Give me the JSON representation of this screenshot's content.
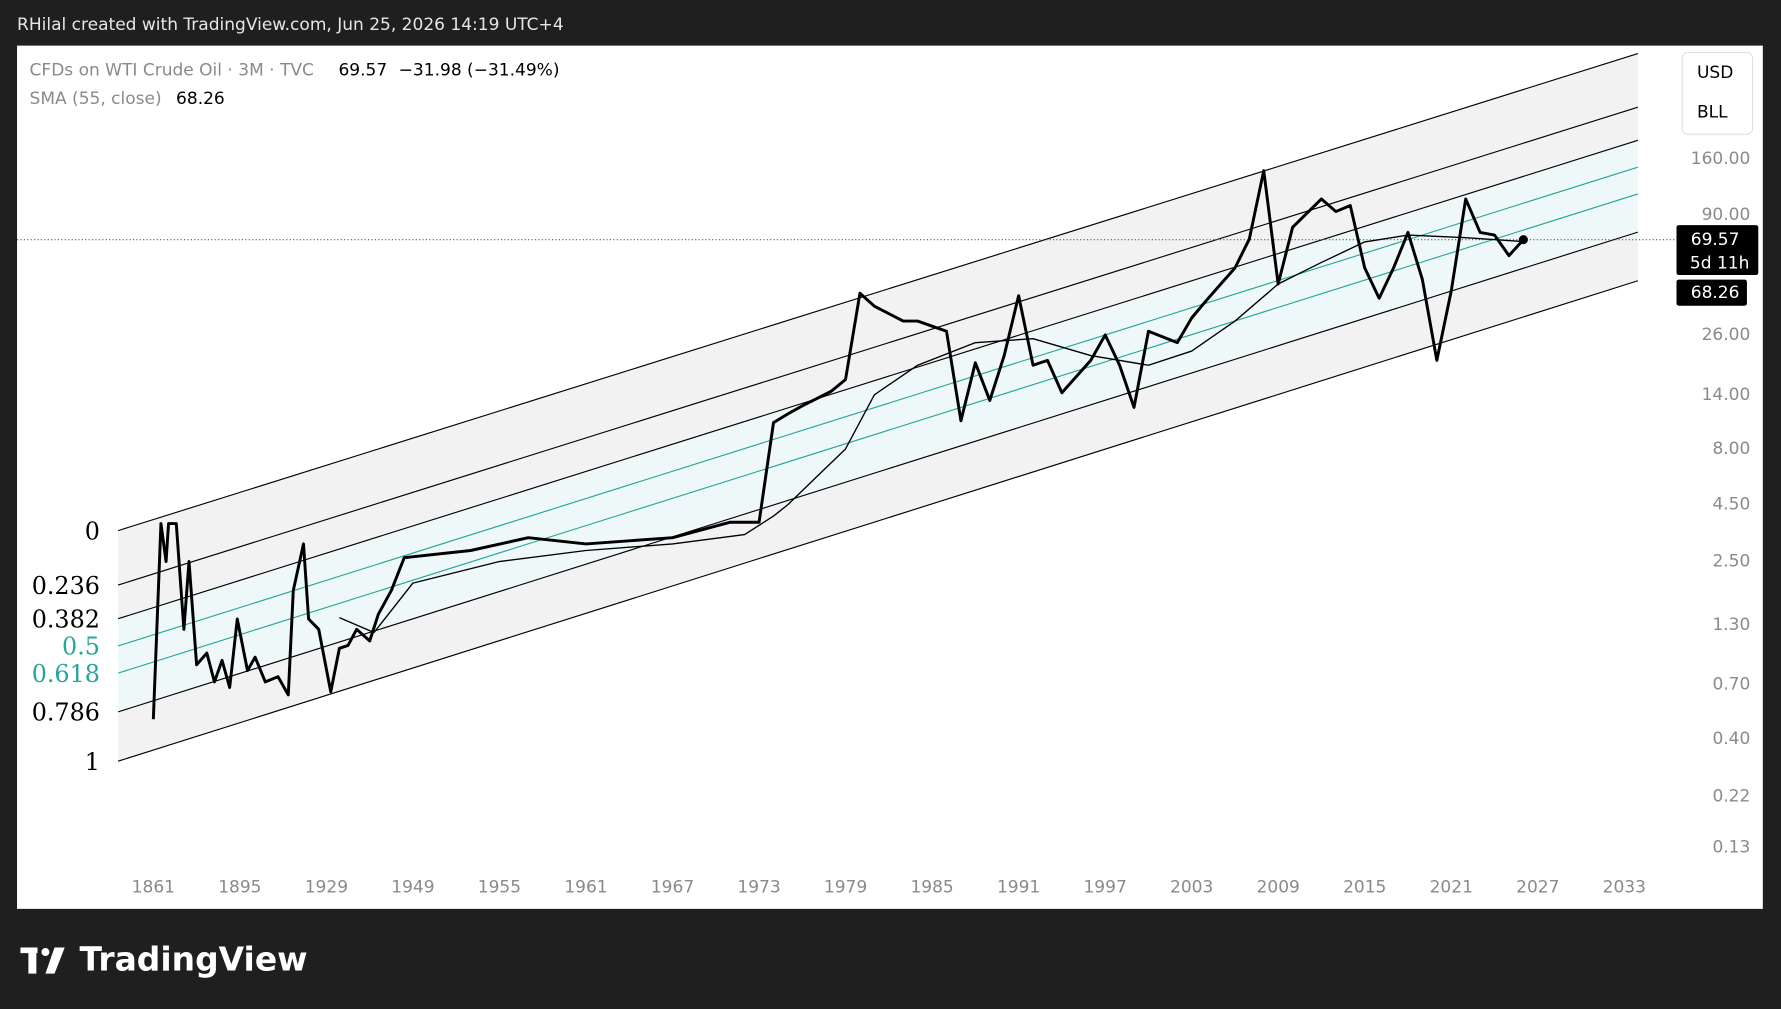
{
  "header": {
    "author_line": "RHilal created with TradingView.com, Jun 25, 2026 14:19 UTC+4"
  },
  "footer": {
    "brand": "TradingView"
  },
  "price_scale": {
    "currency": "USD",
    "unit": "BLL",
    "countdown": "5d 11h"
  },
  "legend": {
    "last_value": 69.57,
    "change": "−31.98 (−31.49%)",
    "sma_value": 68.26
  },
  "chart_data": {
    "type": "line",
    "log_scale": true,
    "ylim": [
      0.069,
      517
    ],
    "yticks": [
      {
        "value": 160,
        "label": "160.00"
      },
      {
        "value": 90,
        "label": "90.00"
      },
      {
        "value": 26,
        "label": "26.00"
      },
      {
        "value": 14,
        "label": "14.00"
      },
      {
        "value": 8,
        "label": "8.00"
      },
      {
        "value": 4.5,
        "label": "4.50"
      },
      {
        "value": 2.5,
        "label": "2.50"
      },
      {
        "value": 1.3,
        "label": "1.30"
      },
      {
        "value": 0.7,
        "label": "0.70"
      },
      {
        "value": 0.4,
        "label": "0.40"
      },
      {
        "value": 0.22,
        "label": "0.22"
      },
      {
        "value": 0.13,
        "label": "0.13"
      }
    ],
    "xticks": [
      1861,
      1895,
      1929,
      1949,
      1955,
      1961,
      1967,
      1973,
      1979,
      1985,
      1991,
      1997,
      2003,
      2009,
      2015,
      2021,
      2027,
      2033
    ],
    "fib_levels": [
      0,
      0.236,
      0.382,
      0.5,
      0.618,
      0.786,
      1
    ],
    "fib_colors": [
      "#000000",
      "#000000",
      "#000000",
      "#26a69a",
      "#26a69a",
      "#000000",
      "#000000"
    ],
    "band_colors": [
      "#f2f2f2",
      "#f2f2f2",
      "#eef8f8",
      "#eef8f8",
      "#eef8f8",
      "#f2f2f2"
    ],
    "series": [
      {
        "name": "CFDs on WTI Crude Oil · 3M · TVC",
        "color": "#000000",
        "x": [
          1861,
          1864,
          1866,
          1867,
          1870,
          1873,
          1875,
          1878,
          1882,
          1885,
          1888,
          1891,
          1894,
          1898,
          1901,
          1905,
          1910,
          1914,
          1916,
          1920,
          1922,
          1926,
          1930,
          1932,
          1934,
          1936,
          1939,
          1941,
          1944,
          1947,
          1953,
          1957,
          1961,
          1967,
          1971,
          1973,
          1974,
          1975,
          1976,
          1978,
          1979,
          1980,
          1981,
          1983,
          1984,
          1986,
          1987,
          1988,
          1989,
          1990,
          1991,
          1992,
          1993,
          1994,
          1996,
          1997,
          1998,
          1999,
          2000,
          2002,
          2003,
          2004,
          2006,
          2007,
          2008,
          2009,
          2010,
          2012,
          2013,
          2014,
          2015,
          2016,
          2017,
          2018,
          2019,
          2020,
          2021,
          2022,
          2023,
          2024,
          2025,
          2026
        ],
        "values": [
          0.49,
          3.7,
          2.5,
          3.7,
          3.7,
          1.24,
          2.5,
          0.86,
          0.97,
          0.72,
          0.9,
          0.68,
          1.38,
          0.81,
          0.93,
          0.72,
          0.76,
          0.63,
          1.85,
          3.0,
          1.38,
          1.24,
          0.65,
          1.02,
          1.05,
          1.24,
          1.1,
          1.45,
          1.85,
          2.6,
          2.8,
          3.2,
          3.0,
          3.2,
          3.75,
          3.75,
          10.5,
          11.5,
          12.5,
          14.5,
          16.4,
          40,
          35,
          30,
          30,
          27,
          10.7,
          19.5,
          13.2,
          21,
          39,
          19,
          20,
          14.3,
          20,
          26,
          19,
          12.3,
          27,
          24,
          31,
          37,
          52,
          70,
          142,
          44,
          79,
          106,
          93,
          99,
          52,
          38,
          52,
          75,
          46,
          20,
          41,
          106,
          75,
          73,
          59,
          69.57
        ]
      },
      {
        "name": "SMA (55, close)",
        "color": "#000000",
        "x": [
          1932,
          1940,
          1949,
          1955,
          1961,
          1967,
          1972,
          1974,
          1975,
          1977,
          1979,
          1981,
          1984,
          1988,
          1992,
          1996,
          2000,
          2003,
          2006,
          2009,
          2012,
          2015,
          2018,
          2022,
          2026
        ],
        "values": [
          1.4,
          1.2,
          2.0,
          2.5,
          2.8,
          3.0,
          3.3,
          4.0,
          4.5,
          6,
          8,
          14,
          19,
          24,
          25,
          21,
          19,
          22,
          30,
          44,
          55,
          68,
          73,
          71,
          68.26
        ]
      }
    ]
  }
}
